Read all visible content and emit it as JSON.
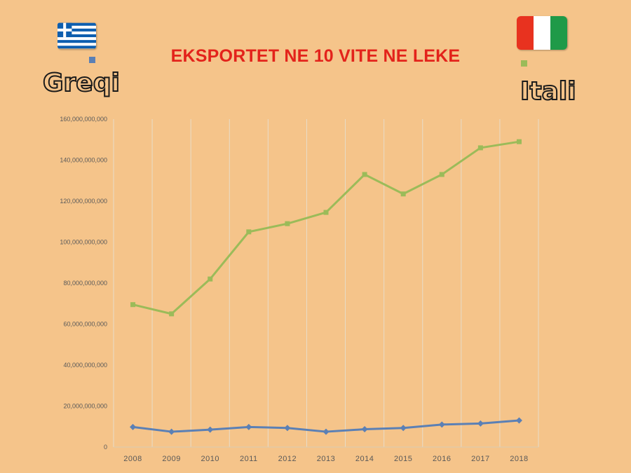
{
  "chart_data": {
    "type": "line",
    "title": "EKSPORTET NE 10 VITE NE LEKE",
    "categories": [
      "2008",
      "2009",
      "2010",
      "2011",
      "2012",
      "2013",
      "2014",
      "2015",
      "2016",
      "2017",
      "2018"
    ],
    "ylim": [
      0,
      160000000000
    ],
    "yticks": [
      "0",
      "20,000,000,000",
      "40,000,000,000",
      "60,000,000,000",
      "80,000,000,000",
      "100,000,000,000",
      "120,000,000,000",
      "140,000,000,000",
      "160,000,000,000"
    ],
    "grid": "vertical",
    "series": [
      {
        "name": "Greqi",
        "color": "#5b80b5",
        "marker": "diamond",
        "values": [
          9800000000,
          7500000000,
          8500000000,
          9800000000,
          9300000000,
          7500000000,
          8700000000,
          9300000000,
          11000000000,
          11500000000,
          13000000000
        ]
      },
      {
        "name": "Itali",
        "color": "#9bbb59",
        "marker": "square",
        "values": [
          69500000000,
          65000000000,
          82000000000,
          105000000000,
          109000000000,
          114500000000,
          133000000000,
          123500000000,
          133000000000,
          146000000000,
          149000000000
        ]
      }
    ]
  },
  "legend": {
    "greqi": {
      "label": "Greqi",
      "color": "#5b80b5",
      "icon": "greece-flag-icon"
    },
    "itali": {
      "label": "Itali",
      "color": "#9bbb59",
      "icon": "italy-flag-icon"
    }
  }
}
